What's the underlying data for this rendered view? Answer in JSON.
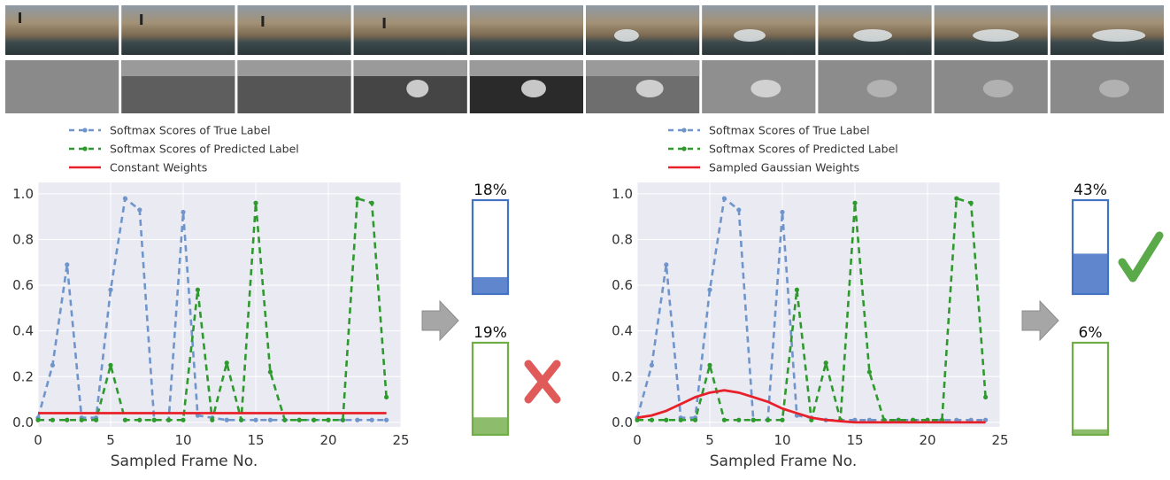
{
  "colors": {
    "true_label": "#6f95cb",
    "pred_label": "#2e9a2e",
    "weight": "#e8202a",
    "plot_bg": "#eaeaf2",
    "bar_blue": "#4472c4",
    "bar_green": "#70ad47",
    "cross": "#e05a5a",
    "check": "#5aaa4a",
    "arrow": "#a6a6a6"
  },
  "icons": {
    "wrong": "cross-icon",
    "right": "check-mark-icon",
    "flow": "arrow-right-icon"
  },
  "thumbnail_strips": {
    "rgb_count": 10,
    "depth_count": 10
  },
  "chart_data": [
    {
      "type": "line",
      "xlabel": "Sampled Frame No.",
      "ylabel": "",
      "xlim": [
        0,
        25
      ],
      "ylim": [
        -0.02,
        1.05
      ],
      "xticks": [
        0,
        5,
        10,
        15,
        20,
        25
      ],
      "yticks": [
        0.0,
        0.2,
        0.4,
        0.6,
        0.8,
        1.0
      ],
      "grid": true,
      "legend_position": "top-left",
      "x": [
        0,
        1,
        2,
        3,
        4,
        5,
        6,
        7,
        8,
        9,
        10,
        11,
        12,
        13,
        14,
        15,
        16,
        17,
        18,
        19,
        20,
        21,
        22,
        23,
        24
      ],
      "series": [
        {
          "name": "Softmax Scores of True Label",
          "style": "dashed-dot",
          "values": [
            0.02,
            0.25,
            0.69,
            0.02,
            0.02,
            0.58,
            0.98,
            0.93,
            0.01,
            0.01,
            0.92,
            0.03,
            0.02,
            0.01,
            0.01,
            0.01,
            0.01,
            0.01,
            0.01,
            0.01,
            0.01,
            0.01,
            0.01,
            0.01,
            0.01
          ]
        },
        {
          "name": "Softmax Scores of Predicted Label",
          "style": "dashed-dot",
          "values": [
            0.01,
            0.01,
            0.01,
            0.01,
            0.01,
            0.25,
            0.01,
            0.01,
            0.01,
            0.01,
            0.01,
            0.58,
            0.01,
            0.26,
            0.01,
            0.96,
            0.22,
            0.01,
            0.01,
            0.01,
            0.01,
            0.01,
            0.98,
            0.96,
            0.11
          ]
        },
        {
          "name": "Constant Weights",
          "style": "solid",
          "values": [
            0.04,
            0.04,
            0.04,
            0.04,
            0.04,
            0.04,
            0.04,
            0.04,
            0.04,
            0.04,
            0.04,
            0.04,
            0.04,
            0.04,
            0.04,
            0.04,
            0.04,
            0.04,
            0.04,
            0.04,
            0.04,
            0.04,
            0.04,
            0.04,
            0.04
          ]
        }
      ],
      "result_bars": [
        {
          "label": "18%",
          "value": 0.18,
          "color": "blue"
        },
        {
          "label": "19%",
          "value": 0.19,
          "color": "green"
        }
      ],
      "verdict": "wrong"
    },
    {
      "type": "line",
      "xlabel": "Sampled Frame No.",
      "ylabel": "",
      "xlim": [
        0,
        25
      ],
      "ylim": [
        -0.02,
        1.05
      ],
      "xticks": [
        0,
        5,
        10,
        15,
        20,
        25
      ],
      "yticks": [
        0.0,
        0.2,
        0.4,
        0.6,
        0.8,
        1.0
      ],
      "grid": true,
      "legend_position": "top-left",
      "x": [
        0,
        1,
        2,
        3,
        4,
        5,
        6,
        7,
        8,
        9,
        10,
        11,
        12,
        13,
        14,
        15,
        16,
        17,
        18,
        19,
        20,
        21,
        22,
        23,
        24
      ],
      "series": [
        {
          "name": "Softmax Scores of True Label",
          "style": "dashed-dot",
          "values": [
            0.02,
            0.25,
            0.69,
            0.02,
            0.02,
            0.58,
            0.98,
            0.93,
            0.01,
            0.01,
            0.92,
            0.03,
            0.02,
            0.01,
            0.01,
            0.01,
            0.01,
            0.01,
            0.01,
            0.01,
            0.01,
            0.01,
            0.01,
            0.01,
            0.01
          ]
        },
        {
          "name": "Softmax Scores of Predicted Label",
          "style": "dashed-dot",
          "values": [
            0.01,
            0.01,
            0.01,
            0.01,
            0.01,
            0.25,
            0.01,
            0.01,
            0.01,
            0.01,
            0.01,
            0.58,
            0.01,
            0.26,
            0.01,
            0.96,
            0.22,
            0.01,
            0.01,
            0.01,
            0.01,
            0.01,
            0.98,
            0.96,
            0.11
          ]
        },
        {
          "name": "Sampled Gaussian Weights",
          "style": "solid",
          "values": [
            0.02,
            0.03,
            0.05,
            0.08,
            0.11,
            0.13,
            0.14,
            0.13,
            0.11,
            0.09,
            0.06,
            0.04,
            0.02,
            0.01,
            0.005,
            0.0,
            0.0,
            0.0,
            0.0,
            0.0,
            0.0,
            0.0,
            0.0,
            0.0,
            0.0
          ]
        }
      ],
      "result_bars": [
        {
          "label": "43%",
          "value": 0.43,
          "color": "blue"
        },
        {
          "label": "6%",
          "value": 0.06,
          "color": "green"
        }
      ],
      "verdict": "right"
    }
  ]
}
